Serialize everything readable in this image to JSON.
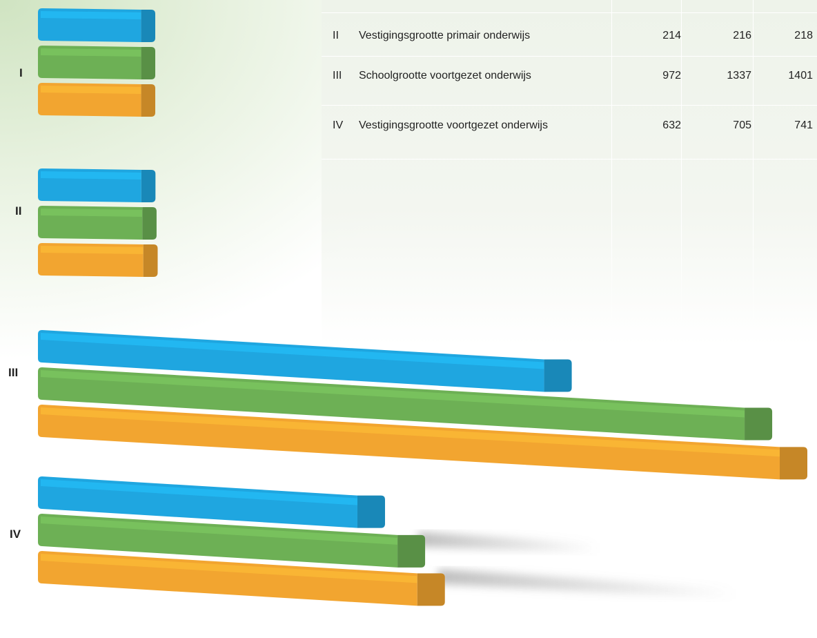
{
  "table": {
    "rows": [
      {
        "id": "II",
        "label": "Vestigingsgrootte primair onderwijs",
        "values": [
          "214",
          "216",
          "218"
        ]
      },
      {
        "id": "III",
        "label": "Schoolgrootte voortgezet onderwijs",
        "values": [
          "972",
          "1337",
          "1401"
        ]
      },
      {
        "id": "IV",
        "label": "Vestigingsgrootte voortgezet onderwijs",
        "values": [
          "632",
          "705",
          "741"
        ]
      }
    ]
  },
  "chart_data": {
    "type": "bar",
    "categories": [
      "I",
      "II",
      "III",
      "IV"
    ],
    "series": [
      {
        "values": [
          null,
          214,
          972,
          632
        ]
      },
      {
        "values": [
          null,
          216,
          1337,
          705
        ]
      },
      {
        "values": [
          null,
          218,
          1401,
          741
        ]
      }
    ],
    "colors": [
      "#1fa6e0",
      "#6db055",
      "#f2a530"
    ]
  }
}
